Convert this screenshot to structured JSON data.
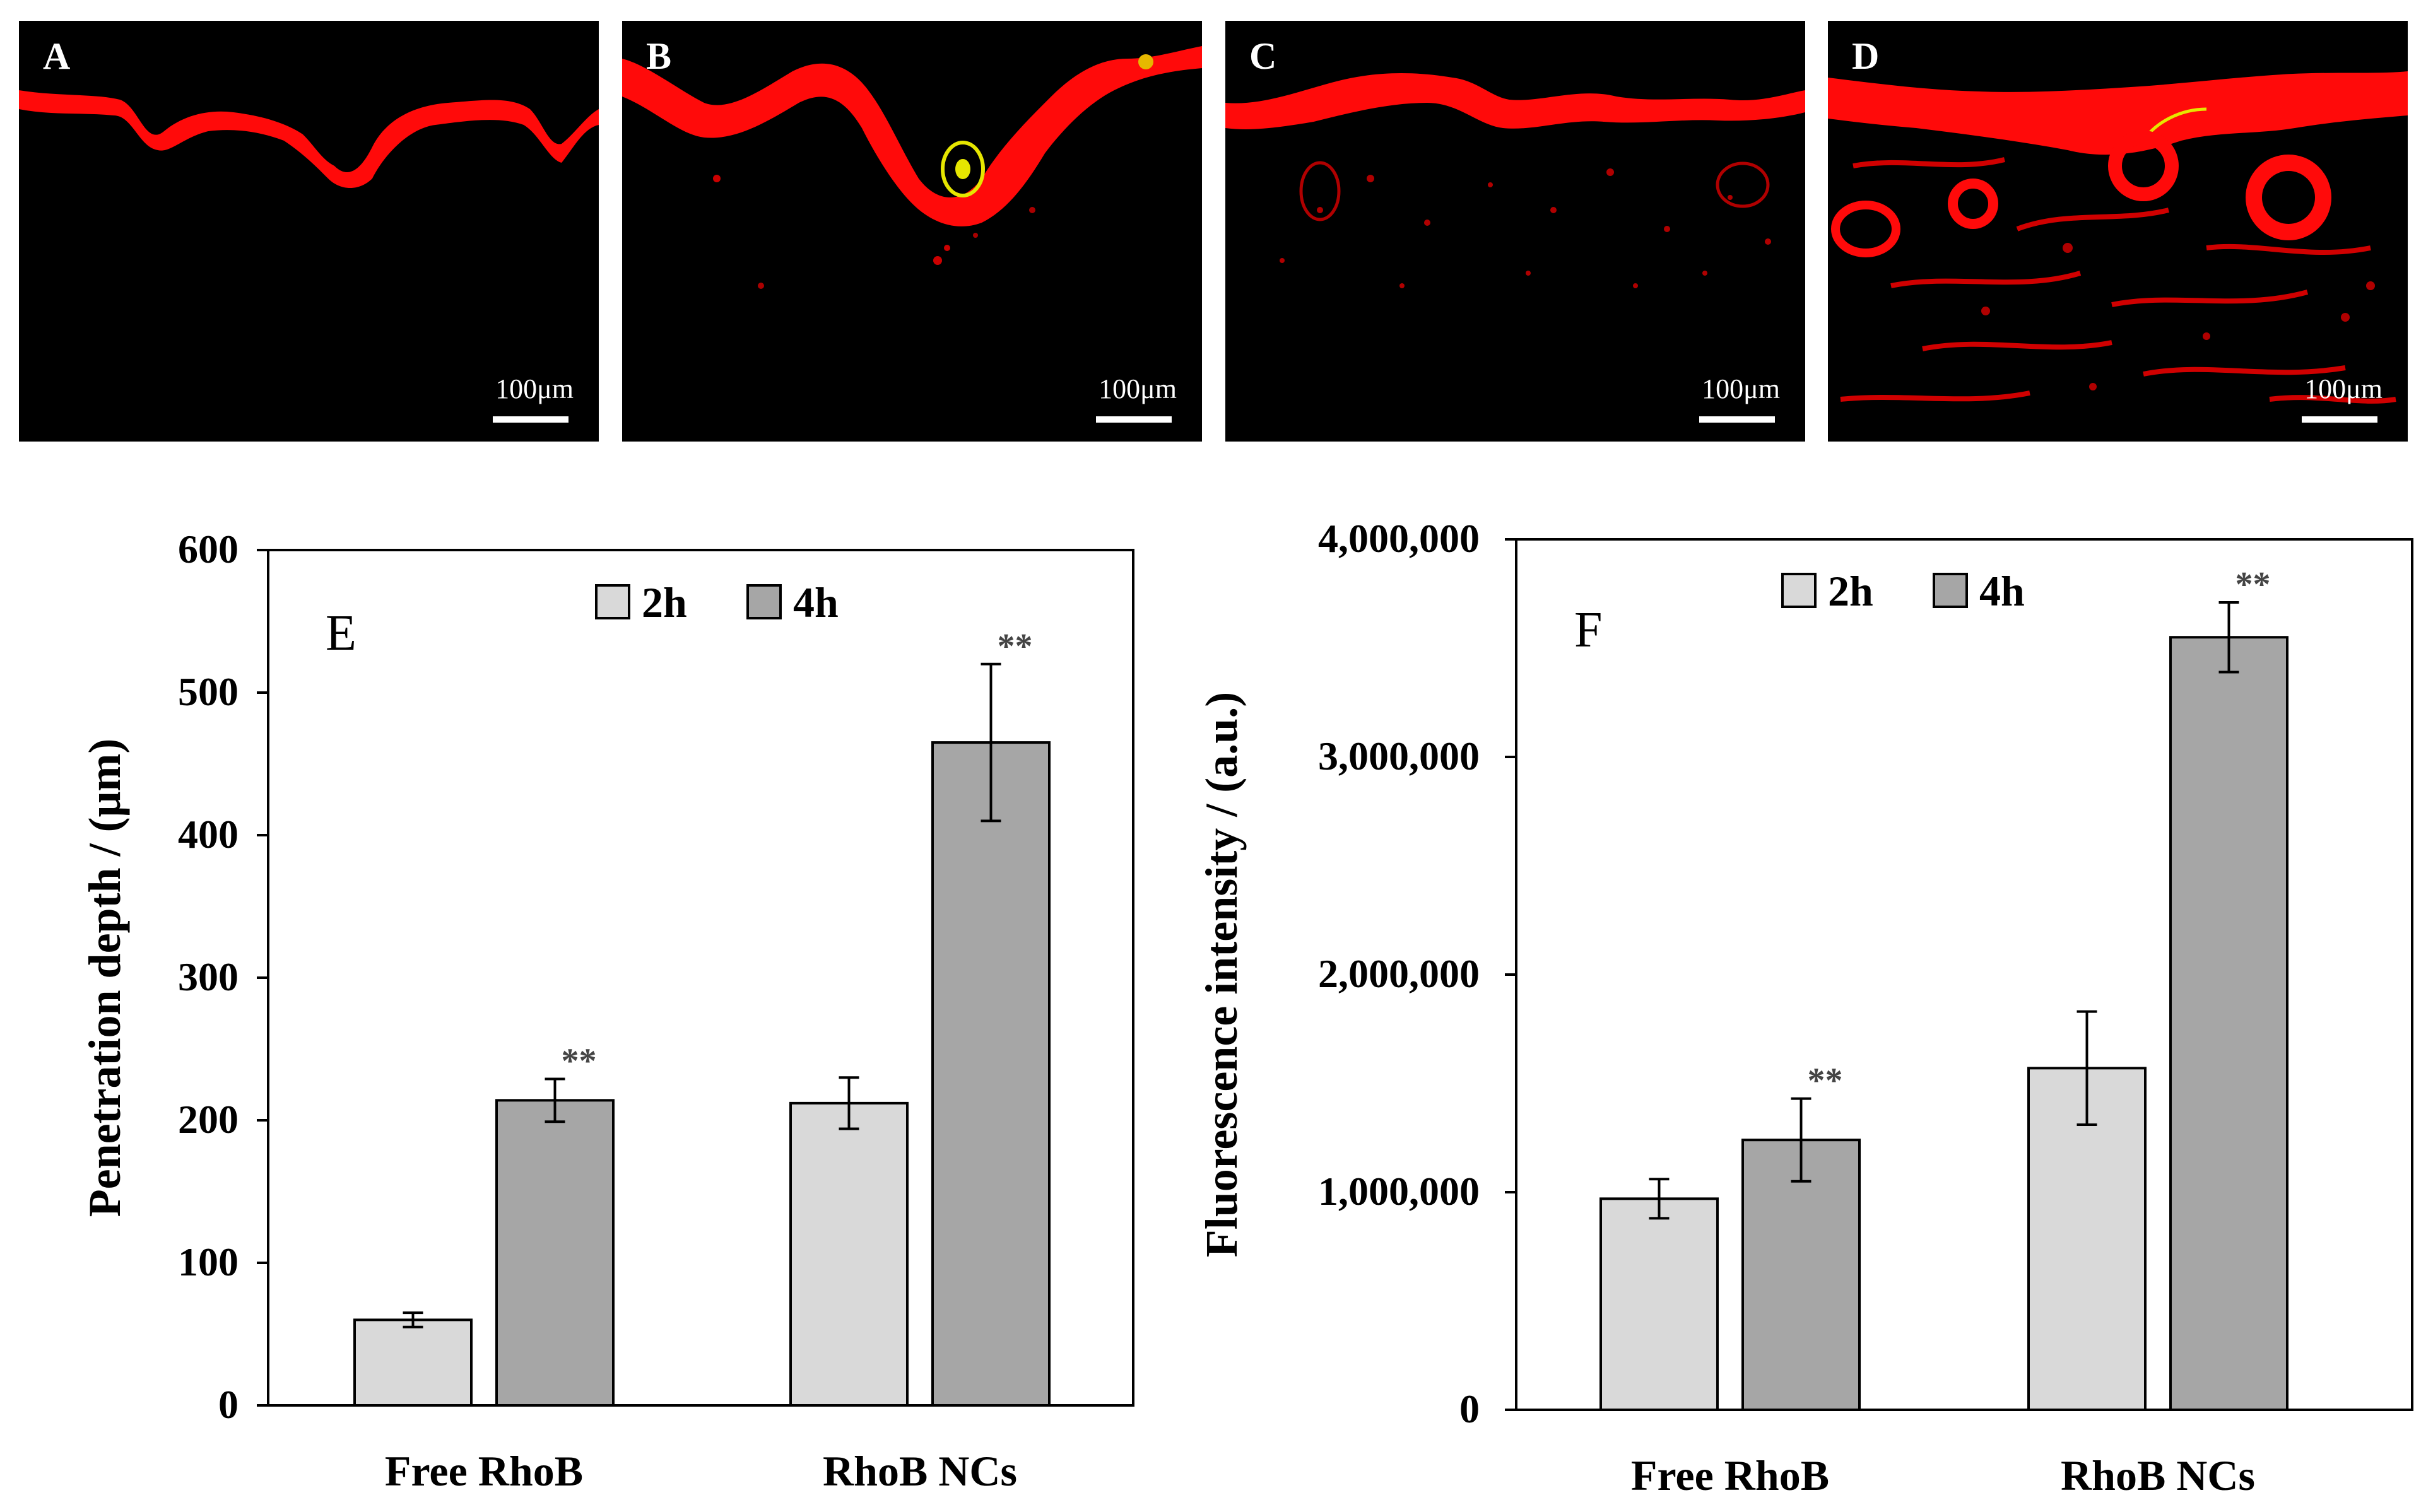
{
  "micrographs": [
    {
      "label": "A",
      "scale": "100μm"
    },
    {
      "label": "B",
      "scale": "100μm"
    },
    {
      "label": "C",
      "scale": "100μm"
    },
    {
      "label": "D",
      "scale": "100μm"
    }
  ],
  "chart_data": [
    {
      "type": "bar",
      "panel_label": "E",
      "title": "",
      "categories": [
        "Free RhoB",
        "RhoB NCs"
      ],
      "series": [
        {
          "name": "2h",
          "color": "#d9d9d9",
          "values": [
            60,
            212
          ],
          "errors": [
            5,
            18
          ],
          "significance": [
            "",
            ""
          ]
        },
        {
          "name": "4h",
          "color": "#a6a6a6",
          "values": [
            214,
            465
          ],
          "errors": [
            15,
            55
          ],
          "significance": [
            "**",
            "**"
          ]
        }
      ],
      "xlabel": "",
      "ylabel": "Penetration depth / (μm)",
      "ylim": [
        0,
        600
      ],
      "yticks": [
        0,
        100,
        200,
        300,
        400,
        500,
        600
      ],
      "ytick_labels": [
        "0",
        "100",
        "200",
        "300",
        "400",
        "500",
        "600"
      ],
      "legend_position": "top-center",
      "grid": false
    },
    {
      "type": "bar",
      "panel_label": "F",
      "title": "",
      "categories": [
        "Free RhoB",
        "RhoB NCs"
      ],
      "series": [
        {
          "name": "2h",
          "color": "#d9d9d9",
          "values": [
            970000,
            1570000
          ],
          "errors": [
            90000,
            260000
          ],
          "significance": [
            "",
            ""
          ]
        },
        {
          "name": "4h",
          "color": "#a6a6a6",
          "values": [
            1240000,
            3550000
          ],
          "errors": [
            190000,
            160000
          ],
          "significance": [
            "**",
            "**"
          ]
        }
      ],
      "xlabel": "",
      "ylabel": "Fluorescence intensity / (a.u.)",
      "ylim": [
        0,
        4000000
      ],
      "yticks": [
        0,
        1000000,
        2000000,
        3000000,
        4000000
      ],
      "ytick_labels": [
        "0",
        "1,000,000",
        "2,000,000",
        "3,000,000",
        "4,000,000"
      ],
      "legend_position": "top-center",
      "grid": false
    }
  ]
}
